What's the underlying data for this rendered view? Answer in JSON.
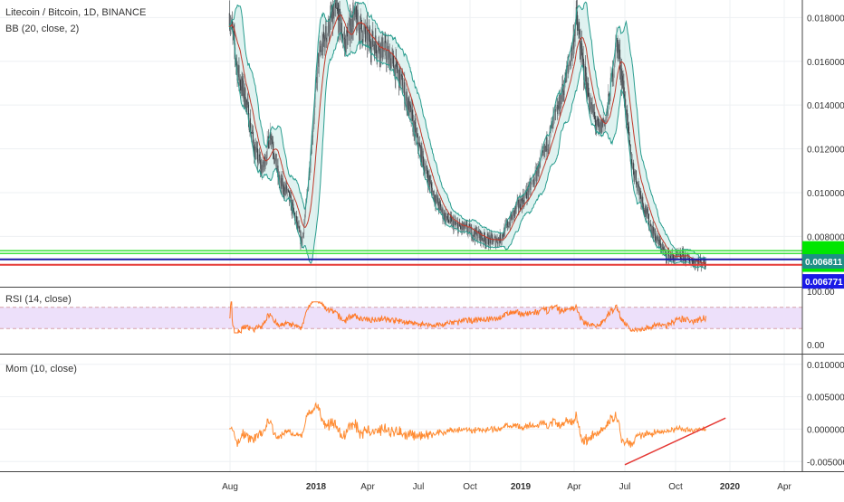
{
  "legend": {
    "symbol_title": "Litecoin / Bitcoin, 1D, BINANCE",
    "bb_label": "BB (20, close, 2)",
    "rsi_label": "RSI (14, close)",
    "mom_label": "Mom (10, close)"
  },
  "colors": {
    "candle_up": "#8a9094",
    "candle_down": "#3a3f44",
    "bb_band": "#2a9d8f",
    "bb_fill": "#b9e2dd",
    "bb_basis": "#c0392b",
    "rsi_line": "#ff7a29",
    "rsi_band_fill": "#ede0fa",
    "rsi_band_edge": "#d6a0a8",
    "mom_line": "#ff8c33",
    "trend_line": "#e53935",
    "hline_green": "#3de03d",
    "hline_blue": "#1a1aa8",
    "hline_red": "#e53935",
    "tag_green": "#00e600",
    "tag_teal": "#1e8f86",
    "tag_blue": "#1a1ae6",
    "grid": "#eef0f3",
    "axis_text": "#333333",
    "pane_border": "#444444"
  },
  "chart_data": [
    {
      "type": "candlestick",
      "title": "Litecoin / Bitcoin, 1D, BINANCE",
      "indicator": "BB (20, close, 2)",
      "x": [
        "Aug",
        "2018",
        "Apr",
        "Jul",
        "Oct",
        "2019",
        "Apr",
        "Jul",
        "Oct",
        "2020",
        "Apr"
      ],
      "y_ticks": [
        "0.018000",
        "0.016000",
        "0.014000",
        "0.012000",
        "0.010000",
        "0.008000"
      ],
      "ylim": [
        0.0057,
        0.0188
      ],
      "price_path": [
        [
          2017.58,
          0.0182
        ],
        [
          2017.62,
          0.0155
        ],
        [
          2017.66,
          0.0142
        ],
        [
          2017.7,
          0.012
        ],
        [
          2017.74,
          0.011
        ],
        [
          2017.78,
          0.0128
        ],
        [
          2017.82,
          0.0105
        ],
        [
          2017.86,
          0.01
        ],
        [
          2017.9,
          0.0088
        ],
        [
          2017.93,
          0.0077
        ],
        [
          2017.95,
          0.0092
        ],
        [
          2017.98,
          0.0125
        ],
        [
          2018.01,
          0.016
        ],
        [
          2018.04,
          0.017
        ],
        [
          2018.07,
          0.0178
        ],
        [
          2018.1,
          0.0182
        ],
        [
          2018.14,
          0.0168
        ],
        [
          2018.18,
          0.018
        ],
        [
          2018.21,
          0.0176
        ],
        [
          2018.25,
          0.017
        ],
        [
          2018.29,
          0.0168
        ],
        [
          2018.33,
          0.0165
        ],
        [
          2018.37,
          0.016
        ],
        [
          2018.41,
          0.0152
        ],
        [
          2018.45,
          0.014
        ],
        [
          2018.49,
          0.0125
        ],
        [
          2018.53,
          0.0112
        ],
        [
          2018.57,
          0.01
        ],
        [
          2018.62,
          0.009
        ],
        [
          2018.66,
          0.0086
        ],
        [
          2018.7,
          0.0084
        ],
        [
          2018.74,
          0.0083
        ],
        [
          2018.78,
          0.0081
        ],
        [
          2018.82,
          0.0079
        ],
        [
          2018.86,
          0.0078
        ],
        [
          2018.9,
          0.0079
        ],
        [
          2018.94,
          0.0086
        ],
        [
          2018.98,
          0.0093
        ],
        [
          2019.02,
          0.0098
        ],
        [
          2019.06,
          0.0105
        ],
        [
          2019.1,
          0.0115
        ],
        [
          2019.14,
          0.0128
        ],
        [
          2019.18,
          0.014
        ],
        [
          2019.21,
          0.0152
        ],
        [
          2019.24,
          0.0165
        ],
        [
          2019.26,
          0.018
        ],
        [
          2019.29,
          0.016
        ],
        [
          2019.33,
          0.014
        ],
        [
          2019.37,
          0.0128
        ],
        [
          2019.41,
          0.0135
        ],
        [
          2019.44,
          0.0155
        ],
        [
          2019.46,
          0.017
        ],
        [
          2019.49,
          0.015
        ],
        [
          2019.53,
          0.0115
        ],
        [
          2019.58,
          0.0098
        ],
        [
          2019.62,
          0.0086
        ],
        [
          2019.66,
          0.0078
        ],
        [
          2019.7,
          0.0072
        ],
        [
          2019.74,
          0.007
        ],
        [
          2019.78,
          0.0071
        ],
        [
          2019.82,
          0.0069
        ],
        [
          2019.86,
          0.0068
        ],
        [
          2019.89,
          0.00681
        ]
      ],
      "horizontal_levels": [
        {
          "value": 0.00735,
          "color": "green"
        },
        {
          "value": 0.00722,
          "color": "green"
        },
        {
          "value": 0.00695,
          "color": "blue"
        },
        {
          "value": 0.0067,
          "color": "red"
        }
      ],
      "price_tags": [
        {
          "label": "0.006811",
          "color": "teal"
        },
        {
          "label": "0.006771",
          "color": "blue"
        }
      ]
    },
    {
      "type": "line",
      "title": "RSI (14, close)",
      "y_ticks": [
        "100.00",
        "0.00"
      ],
      "ylim": [
        0,
        100
      ],
      "band": [
        30,
        70
      ]
    },
    {
      "type": "line",
      "title": "Mom (10, close)",
      "y_ticks": [
        "0.010000",
        "0.005000",
        "0.000000",
        "-0.005000"
      ],
      "ylim": [
        -0.0065,
        0.0115
      ],
      "trend_line": [
        [
          2019.5,
          -0.0055
        ],
        [
          2019.98,
          0.0017
        ]
      ]
    }
  ]
}
